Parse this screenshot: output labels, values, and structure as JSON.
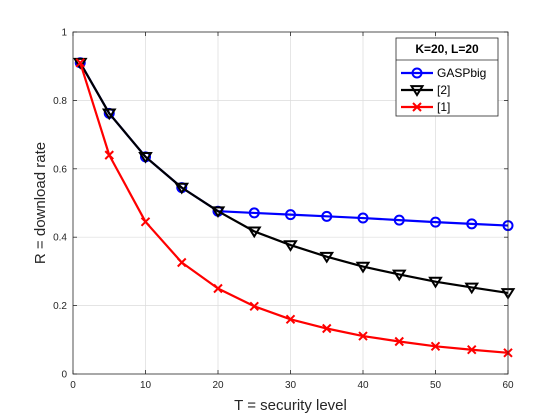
{
  "chart_data": {
    "type": "line",
    "xlabel": "T = security level",
    "ylabel": "R = download rate",
    "xlim": [
      0,
      60
    ],
    "ylim": [
      0,
      1
    ],
    "xticks": [
      0,
      10,
      20,
      30,
      40,
      50,
      60
    ],
    "yticks": [
      0,
      0.2,
      0.4,
      0.6,
      0.8,
      1
    ],
    "grid": true,
    "legend": {
      "title": "K=20, L=20",
      "placement": "top-right"
    },
    "series": [
      {
        "name": "GASPbig",
        "color": "#0000ff",
        "marker": "circle",
        "x": [
          1,
          5,
          10,
          15,
          20,
          25,
          30,
          35,
          40,
          45,
          50,
          55,
          60
        ],
        "y": [
          0.91,
          0.762,
          0.635,
          0.545,
          0.476,
          0.471,
          0.466,
          0.461,
          0.456,
          0.45,
          0.444,
          0.439,
          0.434
        ]
      },
      {
        "name": "[2]",
        "color": "#000000",
        "marker": "triangle-down",
        "x": [
          1,
          5,
          10,
          15,
          20,
          25,
          30,
          35,
          40,
          45,
          50,
          55,
          60
        ],
        "y": [
          0.91,
          0.762,
          0.635,
          0.545,
          0.476,
          0.417,
          0.377,
          0.343,
          0.314,
          0.291,
          0.27,
          0.253,
          0.237
        ]
      },
      {
        "name": "[1]",
        "color": "#ff0000",
        "marker": "x",
        "x": [
          1,
          5,
          10,
          15,
          20,
          25,
          30,
          35,
          40,
          45,
          50,
          55,
          60
        ],
        "y": [
          0.91,
          0.64,
          0.445,
          0.326,
          0.25,
          0.198,
          0.16,
          0.133,
          0.111,
          0.095,
          0.081,
          0.071,
          0.062
        ]
      }
    ]
  }
}
